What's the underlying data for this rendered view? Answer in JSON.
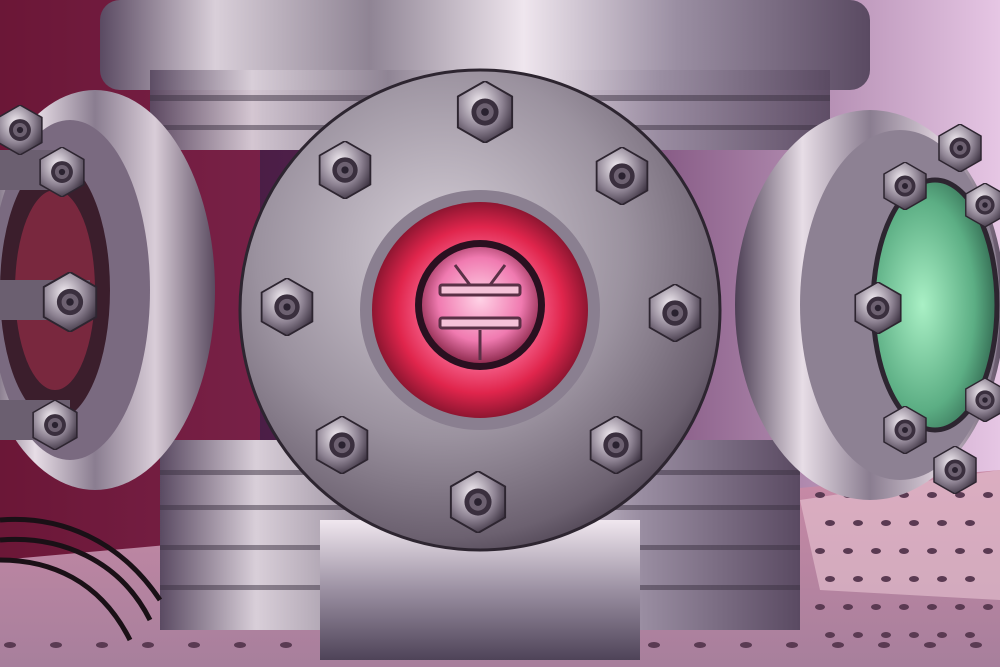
{
  "scene": {
    "subject": "ultra-high-vacuum-chamber",
    "palette": {
      "background": "#2a1535",
      "background_right": "#e9c9e6",
      "steel_light": "#e9e2ea",
      "steel_mid": "#a8a0b0",
      "steel_dark": "#4a4052",
      "glow_red": "#ff3b5c",
      "glow_pink": "#ff8fb0",
      "glow_green": "#7ad29a",
      "table_top": "#d8a9b8"
    },
    "icons": {
      "center_window": "viewport-window-icon",
      "bolt": "hex-bolt-icon",
      "table_hole": "mounting-hole-icon"
    }
  }
}
